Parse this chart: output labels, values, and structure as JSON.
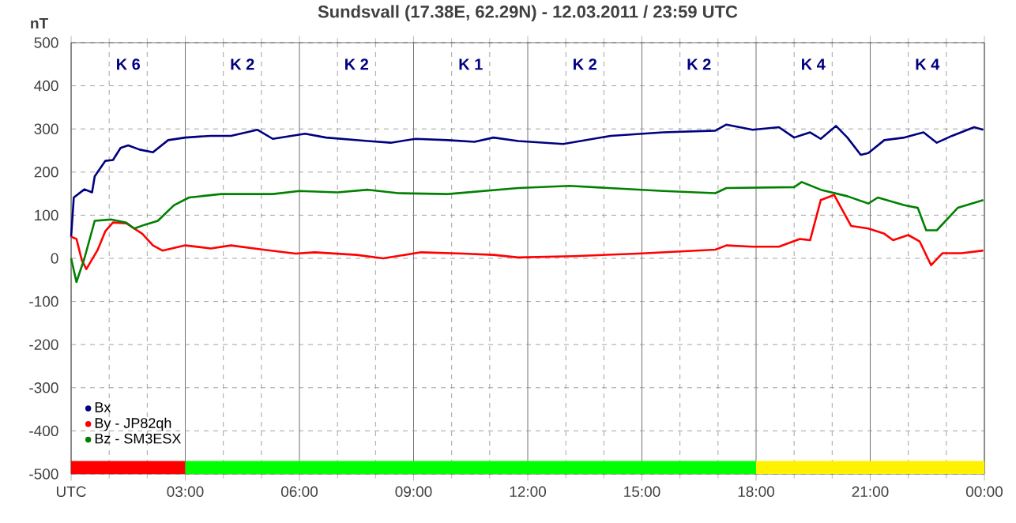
{
  "chart_data": {
    "type": "line",
    "title": "Sundsvall (17.38E, 62.29N) - 12.03.2011 / 23:59 UTC",
    "ylabel": "nT",
    "xlim": [
      0,
      24
    ],
    "ylim": [
      -500,
      500
    ],
    "xticks": [
      {
        "value": 0,
        "label": "UTC"
      },
      {
        "value": 3,
        "label": "03:00"
      },
      {
        "value": 6,
        "label": "06:00"
      },
      {
        "value": 9,
        "label": "09:00"
      },
      {
        "value": 12,
        "label": "12:00"
      },
      {
        "value": 15,
        "label": "15:00"
      },
      {
        "value": 18,
        "label": "18:00"
      },
      {
        "value": 21,
        "label": "21:00"
      },
      {
        "value": 24,
        "label": "00:00"
      }
    ],
    "yticks": [
      -500,
      -400,
      -300,
      -200,
      -100,
      0,
      100,
      200,
      300,
      400,
      500
    ],
    "grid": true,
    "legend": "bottom left",
    "marker": "none",
    "line_style": "solid",
    "series": [
      {
        "name": "Bx",
        "color": "#000080",
        "x": [
          0,
          0.07,
          0.35,
          0.55,
          0.62,
          0.9,
          1.1,
          1.3,
          1.5,
          1.8,
          2.15,
          2.55,
          3,
          3.67,
          4.2,
          4.9,
          5.3,
          6.15,
          6.7,
          7.8,
          8.4,
          9.05,
          9.9,
          10.6,
          11.1,
          11.75,
          12.93,
          14.18,
          15.56,
          16.93,
          17.22,
          17.91,
          18.6,
          19.0,
          19.42,
          19.7,
          20.1,
          20.4,
          20.75,
          20.95,
          21.37,
          21.9,
          22.4,
          22.75,
          23.15,
          23.73,
          23.97
        ],
        "values": [
          50,
          141,
          160,
          153,
          190,
          226,
          228,
          256,
          262,
          252,
          246,
          274,
          280,
          284,
          284,
          298,
          277,
          289,
          280,
          272,
          268,
          277,
          274,
          270,
          280,
          272,
          265,
          284,
          292,
          296,
          310,
          298,
          304,
          280,
          292,
          277,
          307,
          280,
          240,
          244,
          274,
          280,
          292,
          268,
          284,
          304,
          298
        ]
      },
      {
        "name": "By  -  JP82qh",
        "color": "#ff0000",
        "x": [
          0,
          0.14,
          0.28,
          0.4,
          0.7,
          0.9,
          1.1,
          1.45,
          1.87,
          2.15,
          2.4,
          3,
          3.67,
          4.2,
          5.05,
          5.9,
          6.4,
          7.5,
          8.2,
          9.2,
          10.3,
          11.1,
          11.75,
          13.2,
          14.9,
          16.93,
          17.22,
          17.91,
          18.6,
          19.15,
          19.42,
          19.7,
          20.05,
          20.5,
          20.95,
          21.37,
          21.6,
          22.0,
          22.3,
          22.6,
          22.9,
          23.4,
          23.97
        ],
        "values": [
          50,
          45,
          -4,
          -25,
          20,
          63,
          83,
          81,
          57,
          30,
          18,
          30,
          23,
          30,
          20,
          11,
          14,
          8,
          0,
          14,
          11,
          8,
          2,
          5,
          11,
          20,
          30,
          27,
          27,
          45,
          42,
          135,
          147,
          75,
          69,
          57,
          42,
          54,
          39,
          -16,
          12,
          12,
          18
        ]
      },
      {
        "name": "Bz  -  SM3ESX",
        "color": "#008000",
        "x": [
          0,
          0.14,
          0.35,
          0.62,
          1.04,
          1.45,
          1.66,
          1.94,
          2.28,
          2.7,
          3.1,
          3.94,
          5.3,
          6.0,
          7.0,
          7.8,
          8.6,
          9.9,
          11.75,
          13.1,
          15.56,
          16.93,
          17.22,
          19.0,
          19.2,
          19.7,
          20.4,
          20.95,
          21.2,
          21.9,
          22.25,
          22.47,
          22.75,
          23.3,
          23.97
        ],
        "values": [
          0,
          -55,
          0,
          87,
          90,
          83,
          69,
          78,
          87,
          123,
          141,
          149,
          149,
          156,
          153,
          159,
          151,
          149,
          163,
          168,
          156,
          151,
          163,
          165,
          177,
          159,
          144,
          127,
          141,
          123,
          117,
          65,
          65,
          117,
          135
        ]
      }
    ],
    "annotations": [
      "K 6",
      "K 2",
      "K 2",
      "K 1",
      "K 2",
      "K 2",
      "K 4",
      "K 4"
    ]
  }
}
